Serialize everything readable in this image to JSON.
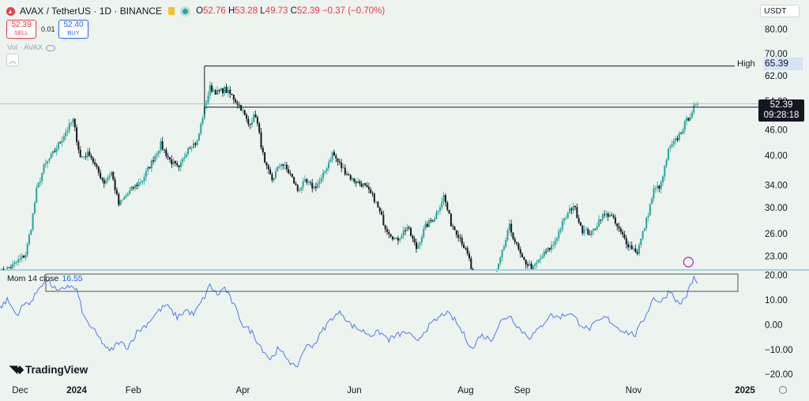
{
  "header": {
    "symbol": "AVAX / TetherUS · 1D · BINANCE",
    "open": "52.76",
    "high": "53.28",
    "low": "49.73",
    "close": "52.39",
    "change": "−0.37 (−0.70%)"
  },
  "trade": {
    "sell_price": "52.39",
    "sell_label": "SELL",
    "spread": "0.01",
    "buy_price": "52.40",
    "buy_label": "BUY"
  },
  "volume_label": "Vol · AVAX",
  "currency": "USDT",
  "price_tag": {
    "price": "52.39",
    "countdown": "09:28:18"
  },
  "high_marker": {
    "label": "High",
    "value": "65.39"
  },
  "indicator": {
    "name": "Mom 14 close",
    "value": "16.55"
  },
  "logo": "TradingView",
  "colors": {
    "up": "#26a69a",
    "down": "#131722",
    "momentum": "#4f7be8",
    "background": "#edf3ee"
  },
  "chart_data": [
    {
      "type": "candlestick",
      "title": "AVAX / TetherUS · 1D · BINANCE",
      "y_scale": "log",
      "y_ticks": [
        "80.00",
        "70.00",
        "62.00",
        "54.00",
        "46.00",
        "40.00",
        "34.00",
        "30.00",
        "26.00",
        "23.00"
      ],
      "x_ticks": [
        "Dec",
        "2024",
        "Feb",
        "Apr",
        "Jun",
        "Aug",
        "Sep",
        "Nov",
        "2025"
      ],
      "ylim": [
        21.3,
        84
      ],
      "series": [
        {
          "name": "AVAX",
          "anchors": [
            [
              "2023-11-20",
              21.0
            ],
            [
              "2023-11-27",
              21.8
            ],
            [
              "2023-12-04",
              23.2
            ],
            [
              "2023-12-07",
              27.0
            ],
            [
              "2023-12-10",
              33.0
            ],
            [
              "2023-12-14",
              37.5
            ],
            [
              "2023-12-20",
              41.0
            ],
            [
              "2023-12-26",
              45.5
            ],
            [
              "2023-12-30",
              48.5
            ],
            [
              "2024-01-03",
              39.5
            ],
            [
              "2024-01-08",
              40.5
            ],
            [
              "2024-01-12",
              37.0
            ],
            [
              "2024-01-16",
              34.5
            ],
            [
              "2024-01-20",
              36.5
            ],
            [
              "2024-01-24",
              30.5
            ],
            [
              "2024-01-28",
              32.0
            ],
            [
              "2024-02-01",
              33.5
            ],
            [
              "2024-02-06",
              35.0
            ],
            [
              "2024-02-11",
              38.5
            ],
            [
              "2024-02-16",
              42.5
            ],
            [
              "2024-02-21",
              39.0
            ],
            [
              "2024-02-26",
              37.0
            ],
            [
              "2024-03-02",
              42.0
            ],
            [
              "2024-03-07",
              43.0
            ],
            [
              "2024-03-11",
              52.0
            ],
            [
              "2024-03-14",
              58.0
            ],
            [
              "2024-03-18",
              56.5
            ],
            [
              "2024-03-22",
              57.5
            ],
            [
              "2024-03-26",
              55.5
            ],
            [
              "2024-03-31",
              52.0
            ],
            [
              "2024-04-04",
              47.5
            ],
            [
              "2024-04-08",
              50.0
            ],
            [
              "2024-04-13",
              38.0
            ],
            [
              "2024-04-17",
              35.0
            ],
            [
              "2024-04-22",
              38.5
            ],
            [
              "2024-04-27",
              36.0
            ],
            [
              "2024-05-01",
              33.0
            ],
            [
              "2024-05-05",
              34.5
            ],
            [
              "2024-05-10",
              33.5
            ],
            [
              "2024-05-14",
              35.0
            ],
            [
              "2024-05-20",
              40.5
            ],
            [
              "2024-05-25",
              37.5
            ],
            [
              "2024-05-31",
              35.0
            ],
            [
              "2024-06-06",
              34.0
            ],
            [
              "2024-06-12",
              31.5
            ],
            [
              "2024-06-18",
              27.0
            ],
            [
              "2024-06-24",
              25.0
            ],
            [
              "2024-06-30",
              27.0
            ],
            [
              "2024-07-05",
              24.0
            ],
            [
              "2024-07-10",
              27.0
            ],
            [
              "2024-07-15",
              28.5
            ],
            [
              "2024-07-20",
              32.0
            ],
            [
              "2024-07-24",
              27.5
            ],
            [
              "2024-07-29",
              25.5
            ],
            [
              "2024-08-03",
              22.5
            ],
            [
              "2024-08-06",
              19.5
            ],
            [
              "2024-08-12",
              20.0
            ],
            [
              "2024-08-18",
              21.0
            ],
            [
              "2024-08-25",
              27.0
            ],
            [
              "2024-09-01",
              22.5
            ],
            [
              "2024-09-07",
              21.5
            ],
            [
              "2024-09-12",
              23.0
            ],
            [
              "2024-09-18",
              24.5
            ],
            [
              "2024-09-23",
              27.5
            ],
            [
              "2024-09-29",
              30.5
            ],
            [
              "2024-10-04",
              26.5
            ],
            [
              "2024-10-09",
              26.0
            ],
            [
              "2024-10-14",
              28.5
            ],
            [
              "2024-10-19",
              29.0
            ],
            [
              "2024-10-24",
              26.5
            ],
            [
              "2024-10-29",
              24.5
            ],
            [
              "2024-11-03",
              23.5
            ],
            [
              "2024-11-08",
              28.0
            ],
            [
              "2024-11-12",
              33.0
            ],
            [
              "2024-11-16",
              34.0
            ],
            [
              "2024-11-20",
              41.0
            ],
            [
              "2024-11-25",
              44.0
            ],
            [
              "2024-11-29",
              47.5
            ],
            [
              "2024-12-04",
              52.0
            ],
            [
              "2024-12-06",
              52.39
            ]
          ]
        }
      ]
    },
    {
      "type": "line",
      "title": "Mom 14 close",
      "y_ticks": [
        "20.00",
        "10.00",
        "0.00",
        "−10.00",
        "−20.00"
      ],
      "ylim": [
        -22.5,
        21.5
      ],
      "series": [
        {
          "name": "Mom 14 close",
          "anchors": [
            [
              "2023-11-20",
              7
            ],
            [
              "2023-11-24",
              10
            ],
            [
              "2023-11-29",
              4
            ],
            [
              "2023-12-03",
              8
            ],
            [
              "2023-12-08",
              10
            ],
            [
              "2023-12-12",
              16
            ],
            [
              "2023-12-16",
              18
            ],
            [
              "2023-12-22",
              13
            ],
            [
              "2023-12-27",
              16
            ],
            [
              "2024-01-01",
              14
            ],
            [
              "2024-01-05",
              3
            ],
            [
              "2024-01-09",
              -1
            ],
            [
              "2024-01-14",
              -6
            ],
            [
              "2024-01-19",
              -11
            ],
            [
              "2024-01-24",
              -7
            ],
            [
              "2024-01-29",
              -9
            ],
            [
              "2024-02-03",
              -3
            ],
            [
              "2024-02-08",
              0
            ],
            [
              "2024-02-14",
              5
            ],
            [
              "2024-02-19",
              8
            ],
            [
              "2024-02-25",
              3
            ],
            [
              "2024-03-01",
              6
            ],
            [
              "2024-03-05",
              4
            ],
            [
              "2024-03-10",
              10
            ],
            [
              "2024-03-14",
              16
            ],
            [
              "2024-03-18",
              12
            ],
            [
              "2024-03-22",
              15
            ],
            [
              "2024-03-27",
              8
            ],
            [
              "2024-04-01",
              0
            ],
            [
              "2024-04-06",
              -3
            ],
            [
              "2024-04-11",
              -9
            ],
            [
              "2024-04-16",
              -14
            ],
            [
              "2024-04-20",
              -10
            ],
            [
              "2024-04-25",
              -13
            ],
            [
              "2024-04-30",
              -18
            ],
            [
              "2024-05-05",
              -9
            ],
            [
              "2024-05-10",
              -8
            ],
            [
              "2024-05-15",
              -2
            ],
            [
              "2024-05-20",
              3
            ],
            [
              "2024-05-25",
              5
            ],
            [
              "2024-05-30",
              0
            ],
            [
              "2024-06-04",
              -2
            ],
            [
              "2024-06-10",
              -4
            ],
            [
              "2024-06-15",
              -3
            ],
            [
              "2024-06-20",
              -6
            ],
            [
              "2024-06-25",
              -4
            ],
            [
              "2024-06-30",
              -3
            ],
            [
              "2024-07-05",
              -7
            ],
            [
              "2024-07-10",
              -2
            ],
            [
              "2024-07-16",
              2
            ],
            [
              "2024-07-21",
              5
            ],
            [
              "2024-07-26",
              2
            ],
            [
              "2024-07-31",
              -4
            ],
            [
              "2024-08-05",
              -10
            ],
            [
              "2024-08-09",
              -4
            ],
            [
              "2024-08-15",
              -6
            ],
            [
              "2024-08-20",
              1
            ],
            [
              "2024-08-25",
              4
            ],
            [
              "2024-08-31",
              -2
            ],
            [
              "2024-09-05",
              -5
            ],
            [
              "2024-09-10",
              -2
            ],
            [
              "2024-09-16",
              4
            ],
            [
              "2024-09-21",
              3
            ],
            [
              "2024-09-27",
              5
            ],
            [
              "2024-10-02",
              1
            ],
            [
              "2024-10-07",
              -2
            ],
            [
              "2024-10-12",
              1
            ],
            [
              "2024-10-17",
              3
            ],
            [
              "2024-10-23",
              -1
            ],
            [
              "2024-10-28",
              -3
            ],
            [
              "2024-11-02",
              -4
            ],
            [
              "2024-11-07",
              3
            ],
            [
              "2024-11-12",
              11
            ],
            [
              "2024-11-16",
              9
            ],
            [
              "2024-11-21",
              14
            ],
            [
              "2024-11-26",
              8
            ],
            [
              "2024-11-30",
              12
            ],
            [
              "2024-12-04",
              19
            ],
            [
              "2024-12-06",
              16.55
            ]
          ]
        }
      ]
    }
  ]
}
